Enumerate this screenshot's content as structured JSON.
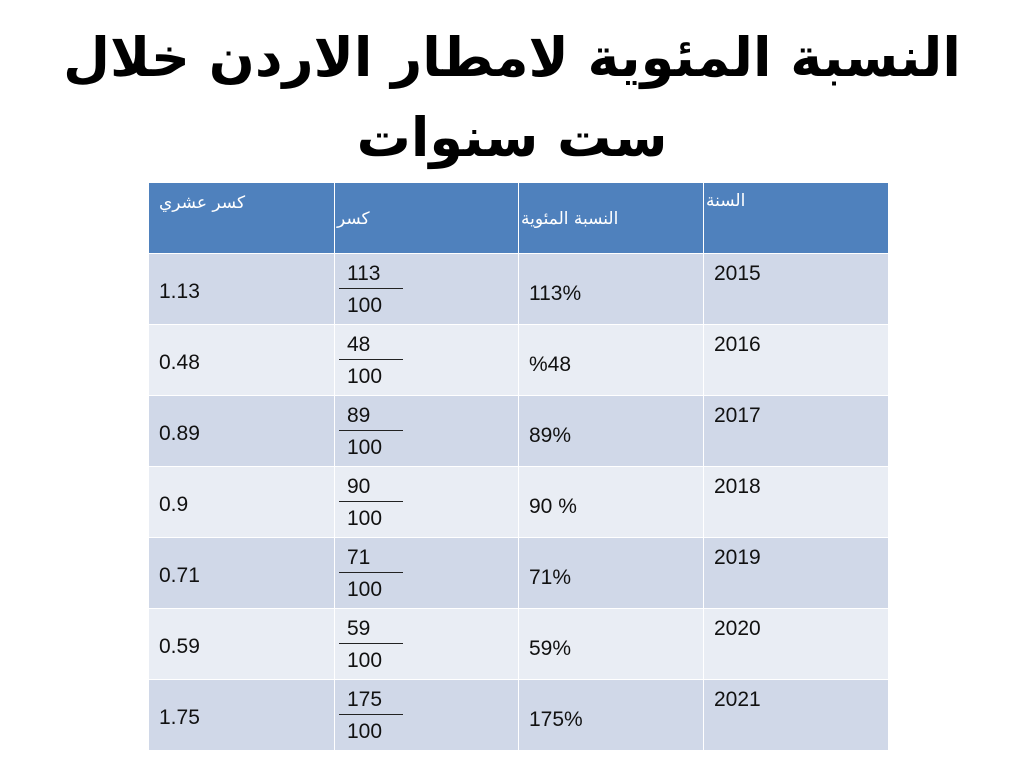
{
  "title_line1": "النسبة المئوية لامطار الاردن خلال",
  "title_line2": "ست سنوات",
  "headers": {
    "decimal": "كسر عشري",
    "fraction": "كسر",
    "percent": "النسبة المئوية",
    "year": "السنة"
  },
  "rows": [
    {
      "decimal": "1.13",
      "numerator": "113",
      "denominator": "100",
      "percent": "113%",
      "year": "2015"
    },
    {
      "decimal": "0.48",
      "numerator": "48",
      "denominator": "100",
      "percent": "%48",
      "year": "2016"
    },
    {
      "decimal": "0.89",
      "numerator": "89",
      "denominator": "100",
      "percent": "89%",
      "year": "2017"
    },
    {
      "decimal": "0.9",
      "numerator": "90",
      "denominator": "100",
      "percent": "90 %",
      "year": "2018"
    },
    {
      "decimal": "0.71",
      "numerator": "71",
      "denominator": "100",
      "percent": "71%",
      "year": "2019"
    },
    {
      "decimal": "0.59",
      "numerator": "59",
      "denominator": "100",
      "percent": "59%",
      "year": "2020"
    },
    {
      "decimal": "1.75",
      "numerator": "175",
      "denominator": "100",
      "percent": "175%",
      "year": "2021"
    }
  ]
}
